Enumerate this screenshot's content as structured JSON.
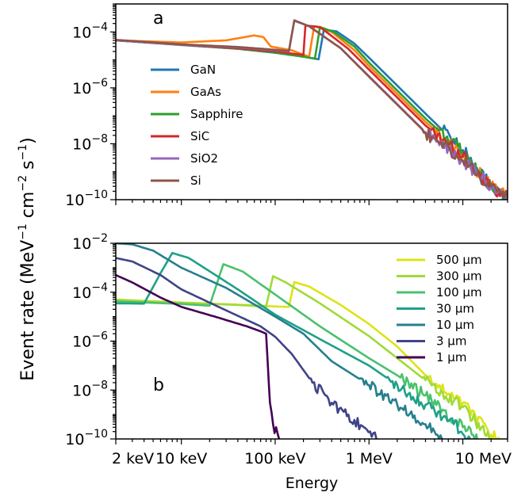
{
  "colors": {
    "GaN": "#1f77b4",
    "GaAs": "#ff7f0e",
    "Sapphire": "#2ca02c",
    "SiC": "#d62728",
    "SiO2": "#9467bd",
    "Si": "#8c564b",
    "500um": "#dde318",
    "300um": "#a0da39",
    "100um": "#4ac16d",
    "30um": "#1fa187",
    "10um": "#277f8e",
    "3um": "#404387",
    "1um": "#440154"
  },
  "shared": {
    "ylabel_text": "Event rate (MeV",
    "ylabel_exp1": "−1",
    "ylabel_mid": " cm",
    "ylabel_exp2": "−2",
    "ylabel_mid2": " s",
    "ylabel_exp3": "−1",
    "ylabel_close": ")",
    "xlabel": "Energy",
    "xtick_labels": [
      "2 keV",
      "10 keV",
      "100 keV",
      "1 MeV",
      "10 MeV"
    ],
    "ytick_base": "10"
  },
  "chart_data": [
    {
      "type": "line",
      "panel_label": "a",
      "x_scale": "log",
      "y_scale": "log",
      "xlim_keV": [
        2,
        30000
      ],
      "ylim": [
        1e-10,
        0.001
      ],
      "ytick_exponents": [
        "−4",
        "−6",
        "−8",
        "−10"
      ],
      "legend_placement": "left",
      "series": [
        {
          "name": "GaN",
          "color_key": "GaN",
          "points": [
            [
              2,
              5e-05
            ],
            [
              10,
              3.4e-05
            ],
            [
              40,
              2.5e-05
            ],
            [
              100,
              1.8e-05
            ],
            [
              200,
              1.3e-05
            ],
            [
              290,
              1.05e-05
            ],
            [
              330,
              0.00012
            ],
            [
              450,
              0.000105
            ],
            [
              700,
              3.8e-05
            ],
            [
              1000,
              1.2e-05
            ],
            [
              2000,
              1.2e-06
            ],
            [
              4000,
              1.2e-07
            ],
            [
              10000,
              6e-09
            ],
            [
              20000,
              3e-10
            ],
            [
              30000,
              1.1e-10
            ]
          ]
        },
        {
          "name": "GaAs",
          "color_key": "GaAs",
          "points": [
            [
              2,
              5e-05
            ],
            [
              10,
              4.2e-05
            ],
            [
              30,
              5e-05
            ],
            [
              60,
              7.5e-05
            ],
            [
              75,
              6.5e-05
            ],
            [
              90,
              3e-05
            ],
            [
              150,
              2.2e-05
            ],
            [
              230,
              1.3e-05
            ],
            [
              260,
              0.00016
            ],
            [
              400,
              0.0001
            ],
            [
              700,
              2.2e-05
            ],
            [
              1000,
              6e-06
            ],
            [
              2000,
              6e-07
            ],
            [
              4000,
              6e-08
            ],
            [
              10000,
              4e-09
            ],
            [
              20000,
              3e-10
            ],
            [
              30000,
              1.2e-10
            ]
          ]
        },
        {
          "name": "Sapphire",
          "color_key": "Sapphire",
          "points": [
            [
              2,
              5e-05
            ],
            [
              10,
              3.5e-05
            ],
            [
              40,
              2.5e-05
            ],
            [
              100,
              1.8e-05
            ],
            [
              200,
              1.3e-05
            ],
            [
              265,
              1.1e-05
            ],
            [
              300,
              0.00015
            ],
            [
              420,
              0.0001
            ],
            [
              700,
              3e-05
            ],
            [
              1000,
              8e-06
            ],
            [
              2000,
              8e-07
            ],
            [
              4000,
              8e-08
            ],
            [
              10000,
              5e-09
            ],
            [
              20000,
              3e-10
            ],
            [
              30000,
              1.1e-10
            ]
          ]
        },
        {
          "name": "SiC",
          "color_key": "SiC",
          "points": [
            [
              2,
              5e-05
            ],
            [
              10,
              3.5e-05
            ],
            [
              40,
              2.6e-05
            ],
            [
              100,
              2e-05
            ],
            [
              200,
              1.5e-05
            ],
            [
              210,
              0.00017
            ],
            [
              300,
              0.00015
            ],
            [
              600,
              2.5e-05
            ],
            [
              1000,
              4.5e-06
            ],
            [
              2000,
              4.5e-07
            ],
            [
              4000,
              4.5e-08
            ],
            [
              10000,
              3.5e-09
            ],
            [
              20000,
              3e-10
            ],
            [
              30000,
              1.2e-10
            ]
          ]
        },
        {
          "name": "SiO2",
          "color_key": "SiO2",
          "points": [
            [
              2,
              5e-05
            ],
            [
              10,
              3.5e-05
            ],
            [
              40,
              2.8e-05
            ],
            [
              100,
              2.2e-05
            ],
            [
              140,
              2e-05
            ],
            [
              160,
              0.00025
            ],
            [
              230,
              0.00016
            ],
            [
              500,
              2.6e-05
            ],
            [
              1000,
              2.6e-06
            ],
            [
              2000,
              2.6e-07
            ],
            [
              4000,
              2.6e-08
            ],
            [
              10000,
              2.5e-09
            ],
            [
              20000,
              3e-10
            ],
            [
              30000,
              1.3e-10
            ]
          ]
        },
        {
          "name": "Si",
          "color_key": "Si",
          "points": [
            [
              2,
              5.2e-05
            ],
            [
              10,
              3.6e-05
            ],
            [
              40,
              2.9e-05
            ],
            [
              100,
              2.3e-05
            ],
            [
              140,
              2.1e-05
            ],
            [
              160,
              0.00026
            ],
            [
              230,
              0.00016
            ],
            [
              500,
              2.6e-05
            ],
            [
              1000,
              2.5e-06
            ],
            [
              2000,
              2.5e-07
            ],
            [
              4000,
              2.5e-08
            ],
            [
              10000,
              2.4e-09
            ],
            [
              20000,
              3e-10
            ],
            [
              30000,
              1.3e-10
            ]
          ]
        }
      ]
    },
    {
      "type": "line",
      "panel_label": "b",
      "x_scale": "log",
      "y_scale": "log",
      "xlim_keV": [
        2,
        30000
      ],
      "ylim": [
        1e-10,
        0.01
      ],
      "ytick_exponents": [
        "−2",
        "−4",
        "−6",
        "−8",
        "−10"
      ],
      "legend_placement": "top-right",
      "series": [
        {
          "name": "500 µm",
          "color_key": "500um",
          "points": [
            [
              2,
              5e-05
            ],
            [
              10,
              3.8e-05
            ],
            [
              40,
              3.1e-05
            ],
            [
              100,
              2.6e-05
            ],
            [
              140,
              2.5e-05
            ],
            [
              160,
              0.00026
            ],
            [
              230,
              0.00017
            ],
            [
              500,
              3e-05
            ],
            [
              1000,
              5e-06
            ],
            [
              2000,
              6e-07
            ],
            [
              4000,
              4e-08
            ],
            [
              10000,
              3e-09
            ],
            [
              20000,
              1.5e-10
            ],
            [
              30000,
              5e-11
            ]
          ]
        },
        {
          "name": "300 µm",
          "color_key": "300um",
          "points": [
            [
              2,
              4.8e-05
            ],
            [
              10,
              3.7e-05
            ],
            [
              40,
              3e-05
            ],
            [
              80,
              2.6e-05
            ],
            [
              95,
              0.00045
            ],
            [
              130,
              0.00025
            ],
            [
              300,
              3.5e-05
            ],
            [
              1000,
              1.6e-06
            ],
            [
              2000,
              2e-07
            ],
            [
              4000,
              2.5e-08
            ],
            [
              10000,
              2e-09
            ],
            [
              20000,
              1e-10
            ],
            [
              25000,
              5e-11
            ]
          ]
        },
        {
          "name": "100 µm",
          "color_key": "100um",
          "points": [
            [
              2,
              4.2e-05
            ],
            [
              10,
              3.3e-05
            ],
            [
              20,
              2.8e-05
            ],
            [
              28,
              0.0014
            ],
            [
              45,
              0.0007
            ],
            [
              100,
              8e-05
            ],
            [
              300,
              4e-06
            ],
            [
              1000,
              2e-07
            ],
            [
              2000,
              4e-08
            ],
            [
              4000,
              6e-09
            ],
            [
              10000,
              3e-10
            ],
            [
              15000,
              1e-10
            ]
          ]
        },
        {
          "name": "30 µm",
          "color_key": "30um",
          "points": [
            [
              2,
              3.5e-05
            ],
            [
              4,
              3.4e-05
            ],
            [
              6,
              0.0006
            ],
            [
              8,
              0.004
            ],
            [
              12,
              0.0025
            ],
            [
              40,
              0.00013
            ],
            [
              100,
              1.2e-05
            ],
            [
              300,
              1.2e-06
            ],
            [
              1000,
              1e-07
            ],
            [
              2000,
              1.6e-08
            ],
            [
              4000,
              2.5e-09
            ],
            [
              8000,
              4e-10
            ],
            [
              12000,
              1e-10
            ]
          ]
        },
        {
          "name": "10 µm",
          "color_key": "10um",
          "points": [
            [
              2,
              0.01
            ],
            [
              3,
              0.009
            ],
            [
              5,
              0.005
            ],
            [
              10,
              0.001
            ],
            [
              30,
              0.00015
            ],
            [
              100,
              1e-05
            ],
            [
              200,
              2e-06
            ],
            [
              400,
              1.5e-07
            ],
            [
              1000,
              1.6e-08
            ],
            [
              2000,
              2.5e-09
            ],
            [
              4000,
              4e-10
            ],
            [
              6000,
              1e-10
            ]
          ]
        },
        {
          "name": "3 µm",
          "color_key": "3um",
          "points": [
            [
              2,
              0.0025
            ],
            [
              3,
              0.0018
            ],
            [
              6,
              0.0005
            ],
            [
              10,
              0.00013
            ],
            [
              30,
              1.8e-05
            ],
            [
              70,
              4e-06
            ],
            [
              100,
              1.5e-06
            ],
            [
              150,
              3e-07
            ],
            [
              250,
              2e-08
            ],
            [
              400,
              3e-09
            ],
            [
              700,
              6e-10
            ],
            [
              1200,
              1e-10
            ]
          ]
        },
        {
          "name": "1 µm",
          "color_key": "1um",
          "points": [
            [
              2,
              0.0005
            ],
            [
              3,
              0.00025
            ],
            [
              6,
              6e-05
            ],
            [
              10,
              2.5e-05
            ],
            [
              25,
              9e-06
            ],
            [
              50,
              4e-06
            ],
            [
              70,
              2.5e-06
            ],
            [
              80,
              2e-06
            ],
            [
              85,
              3e-08
            ],
            [
              88,
              3e-09
            ],
            [
              95,
              4e-10
            ],
            [
              110,
              1e-10
            ]
          ]
        }
      ]
    }
  ]
}
